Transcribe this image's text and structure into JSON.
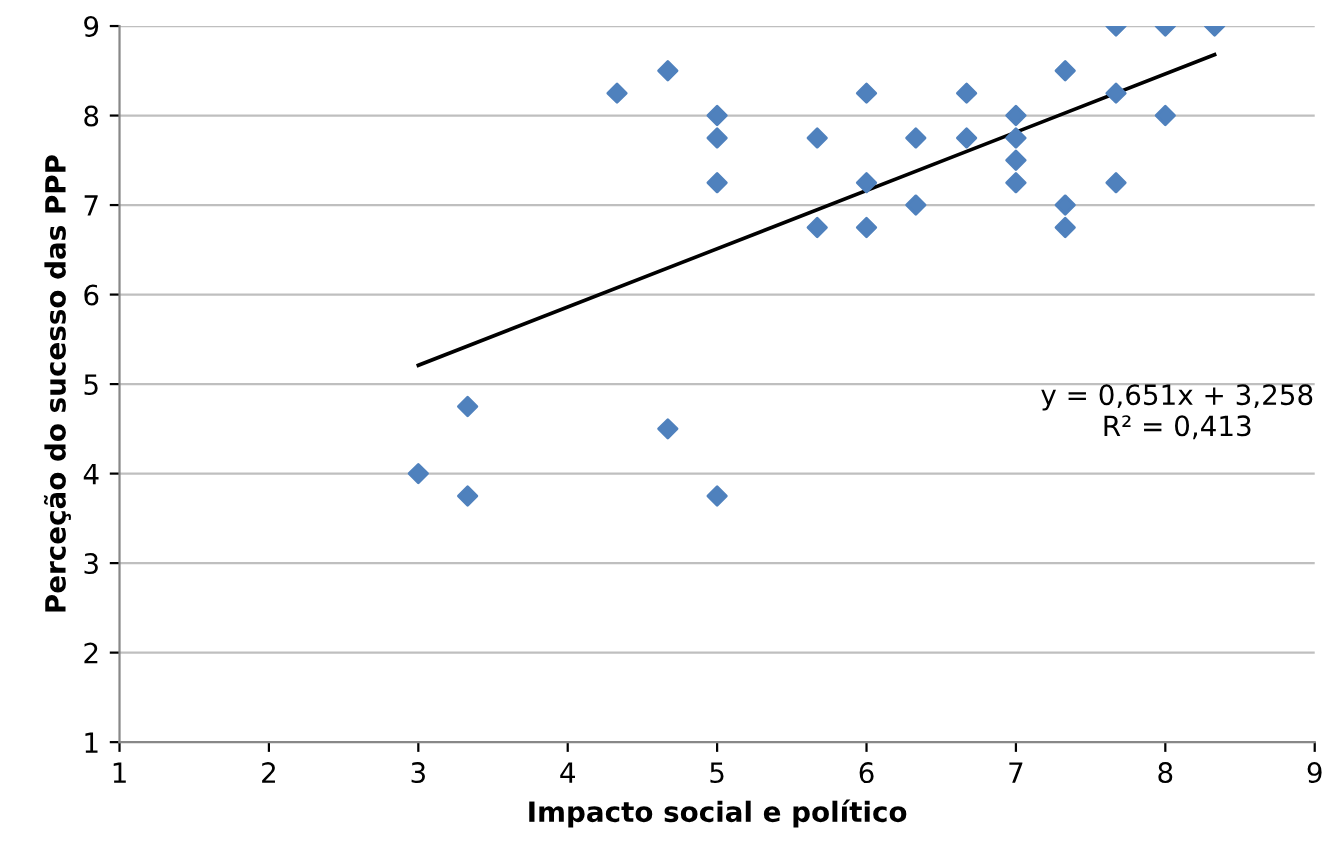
{
  "chart_data": {
    "type": "scatter",
    "xlabel": "Impacto social e político",
    "ylabel": "Perceção do sucesso das PPP",
    "xlim": [
      1,
      9
    ],
    "ylim": [
      1,
      9
    ],
    "xticks": [
      1,
      2,
      3,
      4,
      5,
      6,
      7,
      8,
      9
    ],
    "yticks": [
      1,
      2,
      3,
      4,
      5,
      6,
      7,
      8,
      9
    ],
    "grid": "y",
    "series": [
      {
        "marker": "diamond",
        "color": "#4f81bd",
        "x": [
          3,
          3.33,
          3.33,
          4.33,
          4.67,
          4.67,
          5,
          5,
          5,
          5,
          5.67,
          5.67,
          6,
          6,
          6,
          6.33,
          6.33,
          6.67,
          6.67,
          7,
          7,
          7,
          7,
          7.33,
          7.33,
          7.33,
          7.67,
          7.67,
          7.67,
          8,
          8,
          8.33
        ],
        "values": [
          4,
          4.75,
          3.75,
          8.25,
          8.5,
          4.5,
          8,
          7.75,
          7.25,
          3.75,
          7.75,
          6.75,
          8.25,
          7.25,
          6.75,
          7.75,
          7,
          8.25,
          7.75,
          8,
          7.75,
          7.5,
          7.25,
          8.5,
          7,
          6.75,
          9,
          8.25,
          7.25,
          9,
          8,
          9
        ]
      },
      {
        "type": "line",
        "marker": "none",
        "color": "#000000",
        "x": [
          3,
          8.33
        ],
        "values": [
          5.21,
          8.68
        ]
      }
    ],
    "annotations": [
      "y = 0,651x + 3,258\nR² = 0,413"
    ]
  }
}
